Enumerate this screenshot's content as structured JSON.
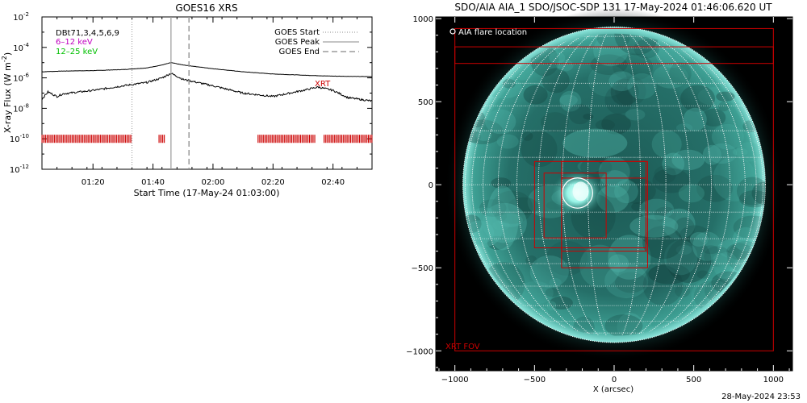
{
  "chart_data": [
    {
      "type": "line",
      "title": "GOES16 XRS",
      "xlabel": "Start Time (17-May-24 01:03:00)",
      "ylabel": "X-ray Flux (W m",
      "ylabel_sup": "-2",
      "ylabel_close": ")",
      "y_scale": "log",
      "ylim": [
        1e-12,
        0.01
      ],
      "xlim": [
        "01:03",
        "02:53"
      ],
      "x_ticks": [
        {
          "label": "01:20",
          "time": "01:20"
        },
        {
          "label": "01:40",
          "time": "01:40"
        },
        {
          "label": "02:00",
          "time": "02:00"
        },
        {
          "label": "02:20",
          "time": "02:20"
        },
        {
          "label": "02:40",
          "time": "02:40"
        }
      ],
      "y_ticks": [
        {
          "base": "10",
          "exp": "-2",
          "value": 0.01
        },
        {
          "base": "10",
          "exp": "-4",
          "value": 0.0001
        },
        {
          "base": "10",
          "exp": "-6",
          "value": 1e-06
        },
        {
          "base": "10",
          "exp": "-8",
          "value": 1e-08
        },
        {
          "base": "10",
          "exp": "-10",
          "value": 1e-10
        },
        {
          "base": "10",
          "exp": "-12",
          "value": 1e-12
        }
      ],
      "filter_text": "DBt71,3,4,5,6,9",
      "energy_labels": [
        {
          "text": "6–12 keV",
          "color": "#c000c0"
        },
        {
          "text": "12–25 keV",
          "color": "#00c000"
        }
      ],
      "legend": {
        "placement": "top-right",
        "entries": [
          {
            "label": "GOES Start",
            "style": "dotted"
          },
          {
            "label": "GOES Peak",
            "style": "solid"
          },
          {
            "label": "GOES End",
            "style": "dashed"
          }
        ]
      },
      "event_lines": {
        "start": "01:33",
        "peak": "01:46",
        "end": "01:52"
      },
      "series": [
        {
          "color": "#000000",
          "x": [
            "01:03",
            "01:10",
            "01:20",
            "01:30",
            "01:38",
            "01:43",
            "01:46",
            "01:50",
            "02:00",
            "02:10",
            "02:20",
            "02:30",
            "02:40",
            "02:53"
          ],
          "values": [
            2.5e-06,
            2.8e-06,
            3e-06,
            3.5e-06,
            4.5e-06,
            7e-06,
            1e-05,
            7e-06,
            4e-06,
            2.5e-06,
            1.8e-06,
            1.5e-06,
            1.3e-06,
            1.2e-06
          ]
        },
        {
          "color": "#000000",
          "x": [
            "01:03",
            "01:05",
            "01:08",
            "01:10",
            "01:20",
            "01:30",
            "01:38",
            "01:43",
            "01:46",
            "01:50",
            "02:00",
            "02:10",
            "02:20",
            "02:30",
            "02:35",
            "02:40",
            "02:45",
            "02:53"
          ],
          "values": [
            4e-08,
            1.2e-07,
            6e-08,
            9e-08,
            1.5e-07,
            3e-07,
            5e-07,
            1e-06,
            2e-06,
            8e-07,
            3e-07,
            1e-07,
            6e-08,
            1.5e-07,
            2.5e-07,
            1.5e-07,
            5e-08,
            3e-08
          ]
        }
      ],
      "xrt_label": {
        "text": "XRT",
        "color": "#cc0000"
      },
      "xrt_coverage": {
        "color": "#cc0000",
        "level": 1e-10,
        "intervals": [
          [
            "01:03",
            "01:33"
          ],
          [
            "01:42",
            "01:44"
          ],
          [
            "02:15",
            "02:34"
          ],
          [
            "02:37",
            "02:53"
          ]
        ]
      }
    },
    {
      "type": "scatter",
      "title": "SDO/AIA AIA_1 SDO/JSOC-SDP 131 17-May-2024 01:46:06.620 UT",
      "xlabel": "X (arcsec)",
      "ylabel": "",
      "xlim": [
        -1120,
        1120
      ],
      "ylim": [
        -1120,
        1010
      ],
      "x_ticks": [
        -1000,
        -500,
        0,
        500,
        1000
      ],
      "y_ticks": [
        1000,
        500,
        0,
        -500,
        -1000
      ],
      "x_tick_labels": [
        "−1000",
        "−500",
        "0",
        "500",
        "1000"
      ],
      "y_tick_labels": [
        "1000",
        "500",
        "0",
        "−500",
        "−1000"
      ],
      "solar_radius_arcsec": 950,
      "legend_label": "AIA flare location",
      "fov_label": {
        "text": "XRT FOV",
        "color": "#cc0000"
      },
      "flare_location": {
        "x": -230,
        "y": -50,
        "radius": 95
      },
      "fov_rectangles": [
        {
          "x0": -1000,
          "y0": -1000,
          "x1": 1000,
          "y1": 940
        },
        {
          "x0": -1000,
          "y0": 730,
          "x1": 1000,
          "y1": 830
        },
        {
          "x0": -500,
          "y0": -380,
          "x1": 200,
          "y1": 140
        },
        {
          "x0": -330,
          "y0": -500,
          "x1": 210,
          "y1": 140
        },
        {
          "x0": -440,
          "y0": -320,
          "x1": -50,
          "y1": 70
        },
        {
          "x0": -330,
          "y0": -400,
          "x1": 200,
          "y1": 40
        }
      ],
      "disk_colors": {
        "outer": "#0a2c2a",
        "mid": "#1f6e66",
        "bright": "#7af0e0",
        "grid": "#ffffff",
        "corona": "#2a8a80"
      }
    }
  ],
  "footer": "28-May-2024 23:53"
}
